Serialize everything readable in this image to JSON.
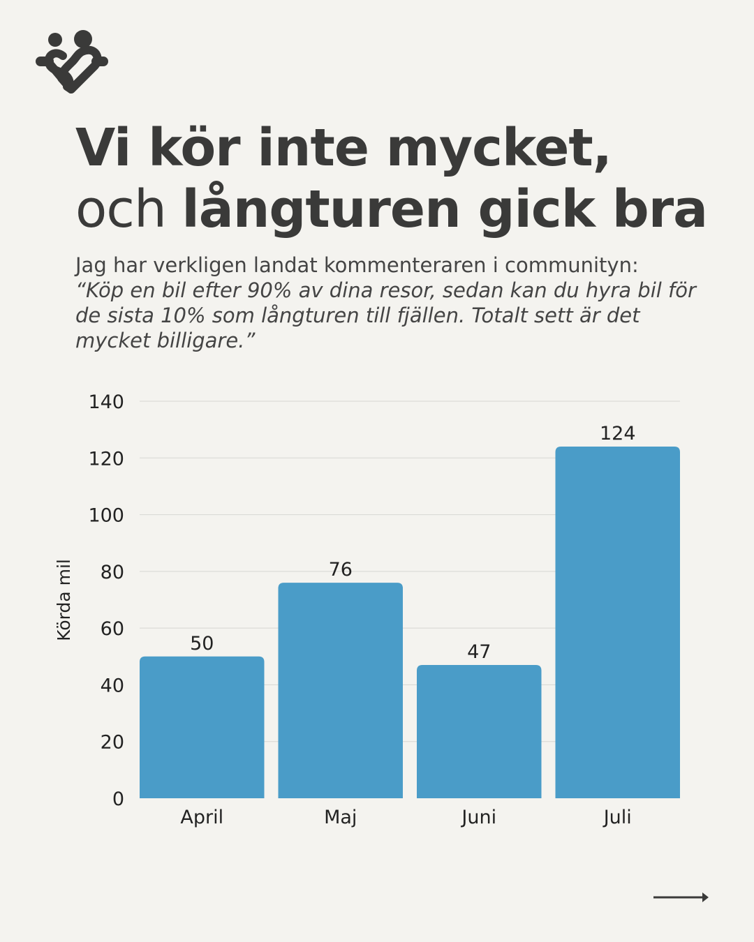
{
  "title": {
    "line1": "Vi kör inte mycket,",
    "line2_light": "och",
    "line2_bold": "långturen gick bra"
  },
  "subtitle": {
    "intro": "Jag har verkligen landat kommenteraren i communityn:",
    "quote": "“Köp en bil efter 90% av dina resor, sedan kan du hyra bil för de sista 10% som långturen till fjällen. Totalt sett är det mycket billigare.”"
  },
  "colors": {
    "bar": "#4a9cc8",
    "text": "#3a3a39",
    "background": "#f4f3ef",
    "grid": "#d6d6d2"
  },
  "chart_data": {
    "type": "bar",
    "categories": [
      "April",
      "Maj",
      "Juni",
      "Juli"
    ],
    "values": [
      50,
      76,
      47,
      124
    ],
    "title": "",
    "xlabel": "",
    "ylabel": "Körda mil",
    "ylim": [
      0,
      140
    ],
    "yticks": [
      0,
      20,
      40,
      60,
      80,
      100,
      120,
      140
    ],
    "grid": true,
    "data_labels": true
  }
}
